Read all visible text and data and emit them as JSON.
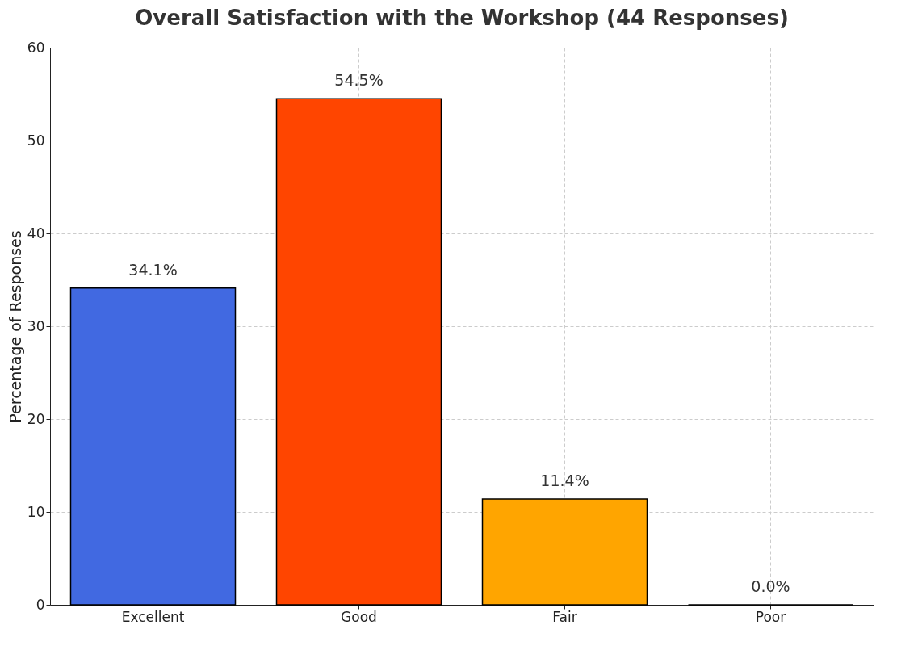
{
  "chart_data": {
    "type": "bar",
    "title": "Overall Satisfaction with the Workshop (44 Responses)",
    "ylabel": "Percentage of Responses",
    "categories": [
      "Excellent",
      "Good",
      "Fair",
      "Poor"
    ],
    "values": [
      34.1,
      54.5,
      11.4,
      0.0
    ],
    "colors": [
      "#4169e1",
      "#ff4500",
      "#ffa500",
      "#000000"
    ],
    "value_labels": [
      "34.1%",
      "54.5%",
      "11.4%",
      "0.0%"
    ],
    "ylim": [
      0,
      60
    ],
    "yticks": [
      0,
      10,
      20,
      30,
      40,
      50,
      60
    ],
    "grid": true
  }
}
